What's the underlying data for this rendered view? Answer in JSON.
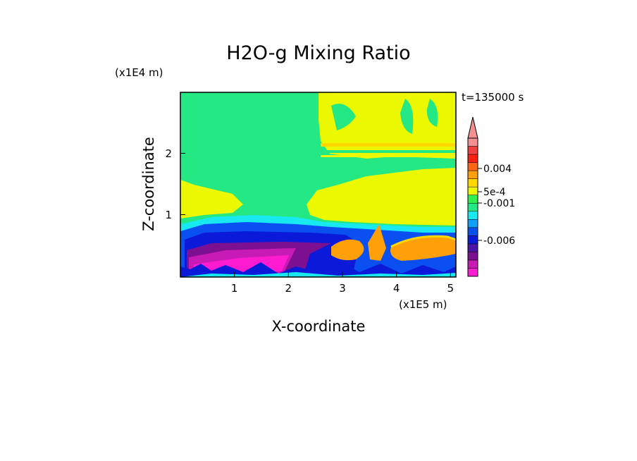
{
  "chart_data": {
    "type": "heatmap",
    "title": "H2O-g Mixing Ratio",
    "xlabel": "X-coordinate",
    "ylabel": "Z-coordinate",
    "x_unit": "(x1E5 m)",
    "y_unit": "(x1E4 m)",
    "time_label": "t=135000 s",
    "xlim": [
      0,
      5.1
    ],
    "ylim": [
      0,
      2.95
    ],
    "x_ticks": [
      "1",
      "2",
      "3",
      "4",
      "5"
    ],
    "x_tick_values": [
      1,
      2,
      3,
      4,
      5
    ],
    "y_ticks": [
      "1",
      "2"
    ],
    "y_tick_values": [
      1,
      2
    ],
    "colorbar": {
      "colors": [
        "#ff1cd0",
        "#c81ab4",
        "#7d1090",
        "#4a14a8",
        "#0a1ad8",
        "#0a50f0",
        "#10a0f8",
        "#18e8f0",
        "#24e884",
        "#30f050",
        "#ecf800",
        "#ffd800",
        "#ffa008",
        "#ff6810",
        "#ff2010",
        "#f04040",
        "#f49090"
      ],
      "tick_labels": [
        "0.004",
        "5e-4",
        "-0.001",
        "-0.006"
      ],
      "tick_values": [
        0.004,
        0.0005,
        -0.001,
        -0.006
      ],
      "extend": "max"
    },
    "regions": [
      {
        "level": "green",
        "color": "#24e884",
        "desc": "background field"
      },
      {
        "level": "yellow",
        "color": "#ecf800",
        "desc": "upper-right plume and mid band"
      },
      {
        "level": "cyan",
        "color": "#18e8f0"
      },
      {
        "level": "blue",
        "color": "#0a50f0"
      },
      {
        "level": "dark-blue",
        "color": "#0a1ad8"
      },
      {
        "level": "purple",
        "color": "#7d1090"
      },
      {
        "level": "magenta",
        "color": "#ff1cd0"
      },
      {
        "level": "orange",
        "color": "#ffa008"
      }
    ]
  }
}
